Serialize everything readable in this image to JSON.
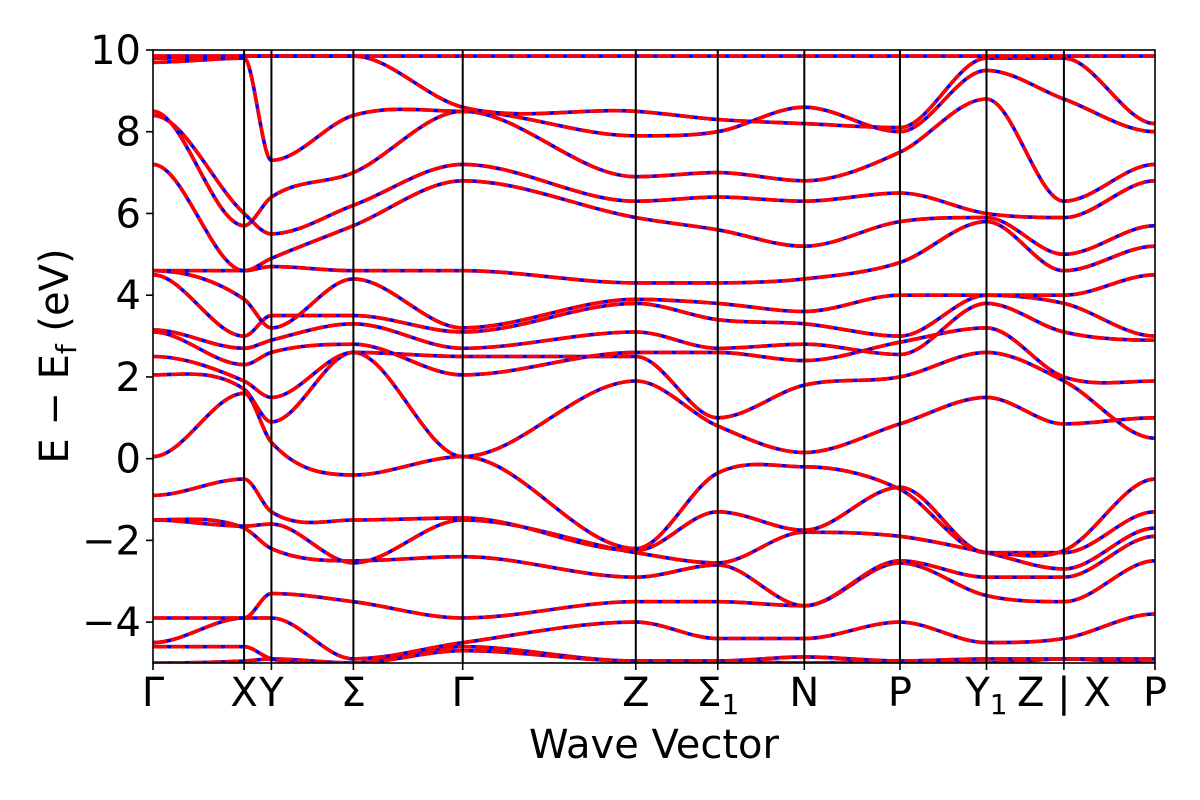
{
  "chart_data": {
    "type": "line",
    "title": "",
    "xlabel": "Wave Vector",
    "ylabel_main": "E − E",
    "ylabel_sub": "f",
    "ylabel_unit": " (eV)",
    "ylim": [
      -5,
      10
    ],
    "xlim": [
      0,
      11.0
    ],
    "yticks": [
      10,
      8,
      6,
      4,
      2,
      0,
      -2,
      -4
    ],
    "ytick_labels": [
      "10",
      "8",
      "6",
      "4",
      "2",
      "0",
      "−2",
      "−4"
    ],
    "kpoints": [
      {
        "label": "Γ",
        "sub": "",
        "x": 0.0
      },
      {
        "label": "X",
        "sub": "",
        "x": 1.0
      },
      {
        "label": "Y",
        "sub": "",
        "x": 1.3
      },
      {
        "label": "Σ",
        "sub": "",
        "x": 2.2
      },
      {
        "label": "Γ",
        "sub": "",
        "x": 3.4
      },
      {
        "label": "Z",
        "sub": "",
        "x": 5.3
      },
      {
        "label": "Σ",
        "sub": "1",
        "x": 6.2
      },
      {
        "label": "N",
        "sub": "",
        "x": 7.15
      },
      {
        "label": "P",
        "sub": "",
        "x": 8.2
      },
      {
        "label": "Y",
        "sub": "1",
        "x": 9.15
      },
      {
        "label": "Z | X",
        "sub": "",
        "x": 10.0
      },
      {
        "label": "P",
        "sub": "",
        "x": 11.0
      }
    ],
    "grid": false,
    "series_styles": [
      {
        "color": "#0000ff",
        "style": "solid"
      },
      {
        "color": "#ff0000",
        "style": "dashed"
      }
    ],
    "band_nodes_x": [
      0,
      1.0,
      1.3,
      2.2,
      3.4,
      5.3,
      6.2,
      7.15,
      8.2,
      9.15,
      10.0,
      11.0
    ],
    "bands": [
      [
        -5.0,
        -4.95,
        -4.9,
        -5.0,
        -4.6,
        -4.95,
        -4.95,
        -5.0,
        -4.95,
        -5.0,
        -4.9,
        -5.0
      ],
      [
        -4.6,
        -4.6,
        -4.9,
        -5.0,
        -4.7,
        -4.95,
        -4.95,
        -4.85,
        -4.95,
        -4.9,
        -4.9,
        -4.9
      ],
      [
        -4.5,
        -3.9,
        -3.9,
        -4.9,
        -4.5,
        -4.0,
        -4.4,
        -4.4,
        -4.0,
        -4.5,
        -4.4,
        -3.8
      ],
      [
        -3.9,
        -3.9,
        -3.3,
        -3.5,
        -3.9,
        -3.5,
        -3.5,
        -3.6,
        -2.55,
        -3.35,
        -3.5,
        -2.5
      ],
      [
        -1.5,
        -1.7,
        -2.2,
        -2.5,
        -2.4,
        -2.9,
        -2.6,
        -3.6,
        -2.5,
        -2.9,
        -2.9,
        -1.9
      ],
      [
        -1.5,
        -1.65,
        -1.6,
        -2.55,
        -1.5,
        -2.3,
        -2.55,
        -1.8,
        -1.9,
        -2.3,
        -2.7,
        -1.7
      ],
      [
        -0.9,
        -0.5,
        -1.3,
        -1.5,
        -1.45,
        -2.25,
        -1.3,
        -1.75,
        -0.7,
        -2.3,
        -2.3,
        -1.3
      ],
      [
        0.05,
        1.6,
        0.4,
        -0.4,
        0.05,
        -2.2,
        -0.35,
        -0.2,
        -0.75,
        -2.3,
        -2.25,
        -0.5
      ],
      [
        2.05,
        1.7,
        0.9,
        2.6,
        0.05,
        1.9,
        0.8,
        0.15,
        0.85,
        1.5,
        0.85,
        1.0
      ],
      [
        2.5,
        1.9,
        1.5,
        2.6,
        2.5,
        2.5,
        1.0,
        1.8,
        2.0,
        2.6,
        1.9,
        0.5
      ],
      [
        3.1,
        2.3,
        2.6,
        2.8,
        2.05,
        2.6,
        2.6,
        2.4,
        2.85,
        3.2,
        2.0,
        1.9
      ],
      [
        3.15,
        2.7,
        2.9,
        3.3,
        2.7,
        3.1,
        2.7,
        2.8,
        2.55,
        3.8,
        3.1,
        2.9
      ],
      [
        4.5,
        3.0,
        3.5,
        3.5,
        3.1,
        3.8,
        3.4,
        3.3,
        3.0,
        4.0,
        3.8,
        3.0
      ],
      [
        4.6,
        3.9,
        3.2,
        4.4,
        3.2,
        3.9,
        3.8,
        3.6,
        4.0,
        4.0,
        4.0,
        4.5
      ],
      [
        4.6,
        4.6,
        4.7,
        4.6,
        4.6,
        4.3,
        4.3,
        4.4,
        4.8,
        5.8,
        4.6,
        5.2
      ],
      [
        7.2,
        4.6,
        4.9,
        5.7,
        6.8,
        5.9,
        5.6,
        5.2,
        5.8,
        5.9,
        5.0,
        5.7
      ],
      [
        8.4,
        6.0,
        5.5,
        6.2,
        7.2,
        6.3,
        6.4,
        6.3,
        6.5,
        6.0,
        5.9,
        6.8
      ],
      [
        8.5,
        5.7,
        6.4,
        7.0,
        8.5,
        6.9,
        7.0,
        6.8,
        7.5,
        8.8,
        6.3,
        7.2
      ],
      [
        9.7,
        9.8,
        7.3,
        8.4,
        8.5,
        7.9,
        8.0,
        8.6,
        8.0,
        9.5,
        8.8,
        8.0
      ],
      [
        9.8,
        9.85,
        9.85,
        9.85,
        8.6,
        8.5,
        8.3,
        8.2,
        8.1,
        9.8,
        9.8,
        8.2
      ],
      [
        9.85,
        9.85,
        9.85,
        9.85,
        9.85,
        9.85,
        9.85,
        9.85,
        9.85,
        9.85,
        9.85,
        9.85
      ]
    ]
  }
}
